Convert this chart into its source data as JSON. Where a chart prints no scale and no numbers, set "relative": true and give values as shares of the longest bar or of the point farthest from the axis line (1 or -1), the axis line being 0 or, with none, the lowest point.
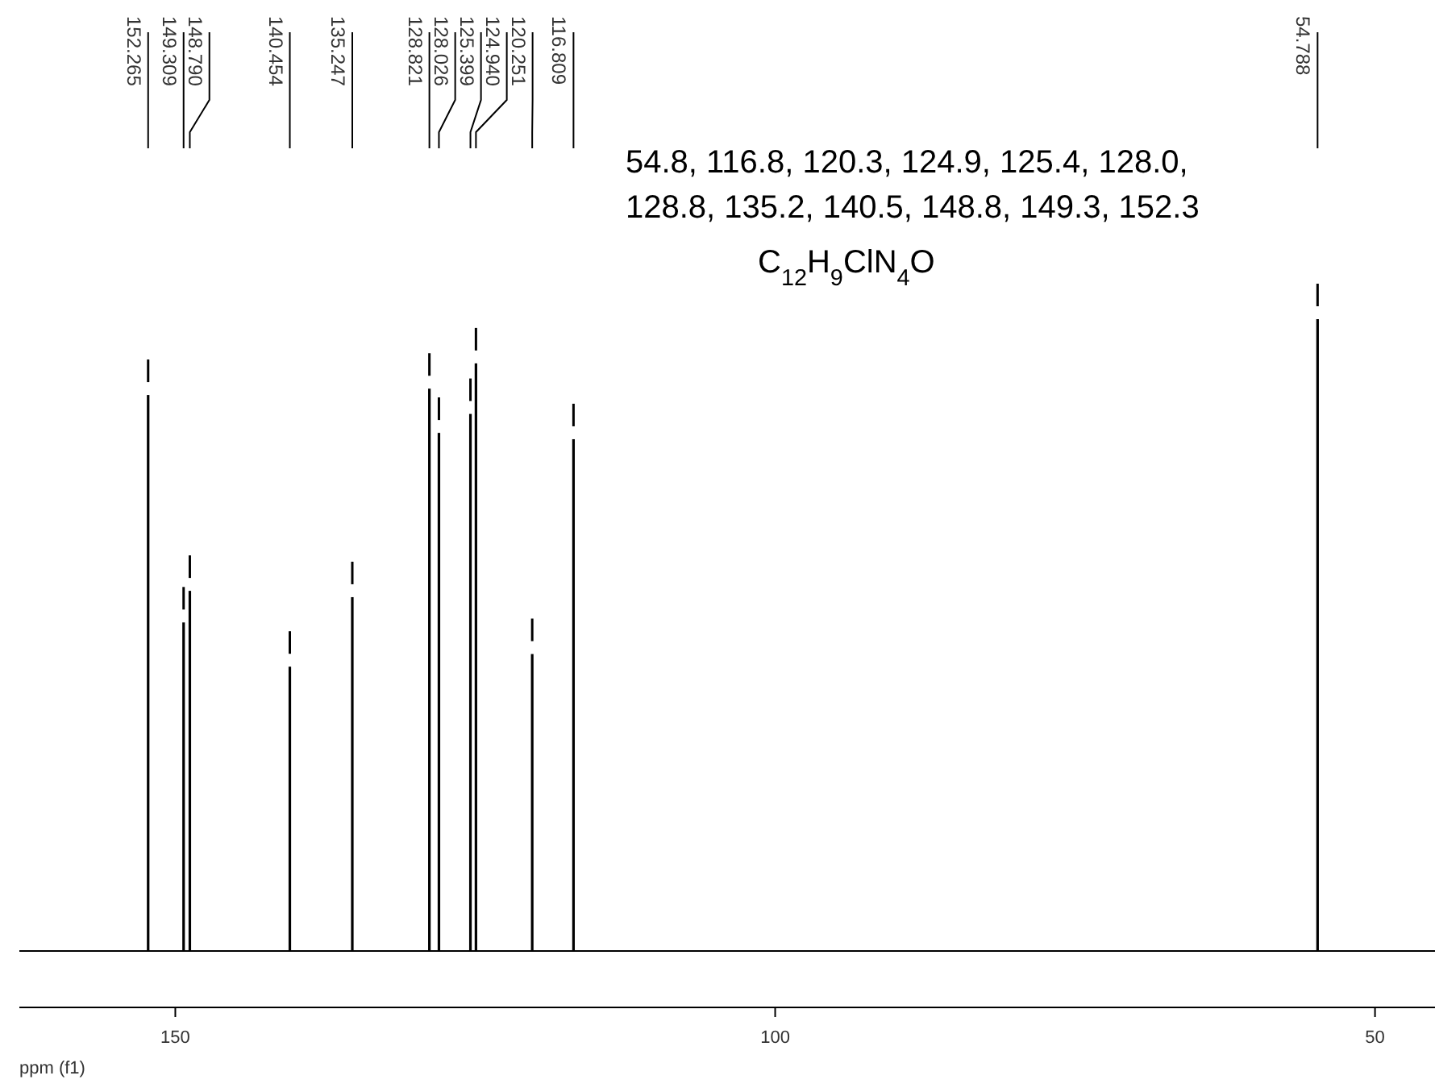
{
  "chart_data": {
    "type": "bar",
    "relative": true,
    "xlabel": "ppm (f1)",
    "xlim": [
      163,
      45
    ],
    "xticks": [
      150,
      100,
      50
    ],
    "x": [
      152.265,
      149.309,
      148.79,
      140.454,
      135.247,
      128.821,
      128.026,
      125.399,
      124.94,
      120.251,
      116.809,
      54.788
    ],
    "series": [
      {
        "color": "#000000",
        "values": [
          0.88,
          0.52,
          0.57,
          0.45,
          0.56,
          0.89,
          0.82,
          0.85,
          0.93,
          0.47,
          0.81,
          1
        ]
      }
    ],
    "annotations": [
      "152.265",
      "149.309",
      "148.790",
      "140.454",
      "135.247",
      "128.821",
      "128.026",
      "125.399",
      "124.940",
      "120.251",
      "116.809",
      "54.788",
      "54.8, 116.8, 120.3, 124.9, 125.4, 128.0,",
      "128.8, 135.2, 140.5, 148.8, 149.3, 152.3",
      "C$_{12}$H$_{9}$ClN$_{4}$O"
    ],
    "grid": false
  }
}
